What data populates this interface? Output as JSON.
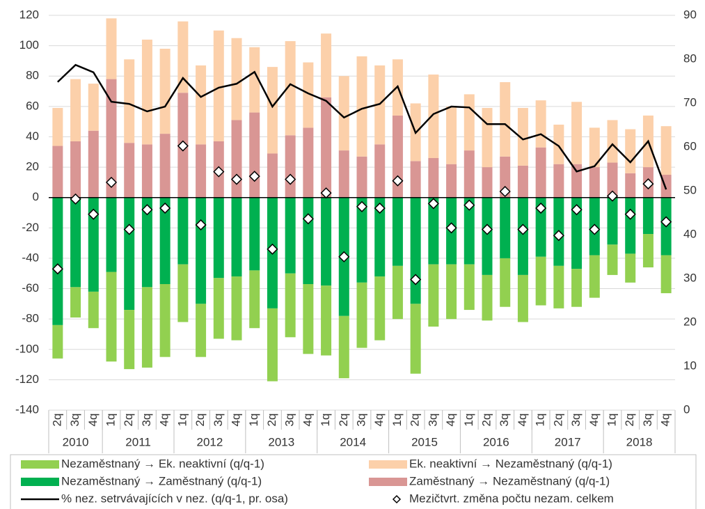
{
  "chart_data": {
    "type": "bar",
    "year_groups": [
      {
        "label": "2010",
        "quarters": [
          "2q",
          "3q",
          "4q"
        ]
      },
      {
        "label": "2011",
        "quarters": [
          "1q",
          "2q",
          "3q",
          "4q"
        ]
      },
      {
        "label": "2012",
        "quarters": [
          "1q",
          "2q",
          "3q",
          "4q"
        ]
      },
      {
        "label": "2013",
        "quarters": [
          "1q",
          "2q",
          "3q",
          "4q"
        ]
      },
      {
        "label": "2014",
        "quarters": [
          "1q",
          "2q",
          "3q",
          "4q"
        ]
      },
      {
        "label": "2015",
        "quarters": [
          "1q",
          "2q",
          "3q",
          "4q"
        ]
      },
      {
        "label": "2016",
        "quarters": [
          "1q",
          "2q",
          "3q",
          "4q"
        ]
      },
      {
        "label": "2017",
        "quarters": [
          "1q",
          "2q",
          "3q",
          "4q"
        ]
      },
      {
        "label": "2018",
        "quarters": [
          "1q",
          "2q",
          "3q",
          "4q"
        ]
      }
    ],
    "series": [
      {
        "name": "Zaměstnaný → Nezaměstnaný (q/q-1)",
        "type": "bar",
        "color": "#d99694",
        "values": [
          34,
          37,
          44,
          78,
          36,
          35,
          42,
          69,
          35,
          37,
          51,
          56,
          29,
          41,
          46,
          66,
          31,
          27,
          35,
          54,
          24,
          26,
          22,
          31,
          20,
          27,
          21,
          33,
          22,
          22,
          20,
          23,
          16,
          20,
          15
        ]
      },
      {
        "name": "Ek. neaktivní → Nezaměstnaný (q/q-1)",
        "type": "bar",
        "color": "#fcd0aa",
        "values": [
          25,
          41,
          31,
          40,
          55,
          69,
          56,
          47,
          52,
          73,
          54,
          43,
          57,
          62,
          43,
          42,
          49,
          66,
          52,
          37,
          38,
          55,
          38,
          37,
          39,
          49,
          38,
          31,
          26,
          41,
          26,
          28,
          29,
          34,
          32
        ]
      },
      {
        "name": "Nezaměstnaný → Zaměstnaný (q/q-1)",
        "type": "bar",
        "color": "#00b050",
        "values": [
          -84,
          -59,
          -62,
          -49,
          -74,
          -59,
          -57,
          -44,
          -70,
          -53,
          -52,
          -48,
          -73,
          -50,
          -57,
          -58,
          -78,
          -56,
          -52,
          -45,
          -70,
          -44,
          -44,
          -44,
          -51,
          -40,
          -51,
          -39,
          -45,
          -47,
          -38,
          -31,
          -37,
          -24,
          -38
        ]
      },
      {
        "name": "Nezaměstnaný → Ek. neaktivní (q/q-1)",
        "type": "bar",
        "color": "#92d050",
        "values": [
          -22,
          -20,
          -24,
          -59,
          -39,
          -53,
          -48,
          -38,
          -35,
          -40,
          -42,
          -38,
          -48,
          -42,
          -46,
          -46,
          -41,
          -43,
          -42,
          -35,
          -46,
          -41,
          -36,
          -30,
          -30,
          -32,
          -31,
          -32,
          -28,
          -25,
          -28,
          -20,
          -19,
          -22,
          -25
        ]
      },
      {
        "name": "% nez. setrvávajících v nez. (q/q-1, pr. osa)",
        "type": "line",
        "axis": "y2",
        "color": "#000000",
        "values": [
          74.8,
          78.7,
          77,
          70.3,
          69.8,
          68.1,
          69.2,
          75.7,
          71.4,
          73.5,
          74.4,
          77.1,
          69.2,
          74.3,
          72.2,
          70.5,
          66.7,
          68.7,
          69.8,
          73.8,
          63.2,
          67.5,
          69.2,
          69,
          65.2,
          65.2,
          61.7,
          62.9,
          60.2,
          54.4,
          55.6,
          60.6,
          56.5,
          61.3,
          50.3
        ]
      },
      {
        "name": "Mezičtvrt. změna počtu nezam. celkem",
        "type": "scatter",
        "color": "#ffffff",
        "values": [
          -47,
          -1,
          -11,
          10,
          -21,
          -8,
          -7,
          34,
          -18,
          17,
          12,
          14,
          -34,
          12,
          -14,
          3,
          -39,
          -6,
          -7,
          11,
          -54,
          -4,
          -20,
          -5,
          -21,
          4,
          -21,
          -7,
          -25,
          -8,
          -21,
          1,
          -11,
          9,
          -16
        ]
      }
    ],
    "ylim": [
      -140,
      120
    ],
    "yticks": [
      -140,
      -120,
      -100,
      -80,
      -60,
      -40,
      -20,
      0,
      20,
      40,
      60,
      80,
      100,
      120
    ],
    "y2lim": [
      0,
      90
    ],
    "y2ticks": [
      0,
      10,
      20,
      30,
      40,
      50,
      60,
      70,
      80,
      90
    ],
    "grid": true,
    "legend": "bottom"
  }
}
